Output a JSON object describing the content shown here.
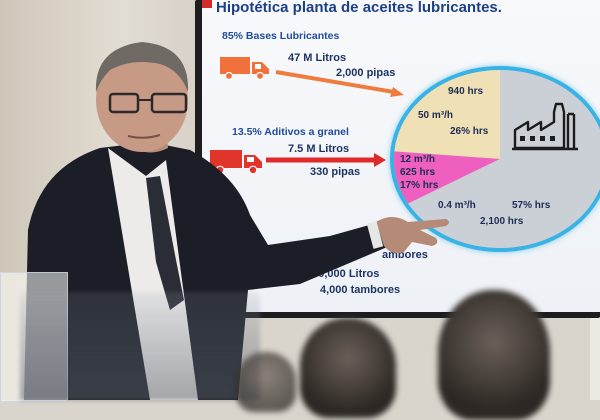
{
  "slide": {
    "title": "Hipotética planta de aceites lubricantes.",
    "bases": {
      "label": "85% Bases Lubricantes",
      "volume": "47 M Litros",
      "pipas": "2,000 pipas"
    },
    "aditivos": {
      "label": "13.5% Aditivos a granel",
      "volume": "7.5 M Litros",
      "pipas": "330 pipas"
    },
    "tambores": {
      "label_partial": "ambores",
      "litros": "840,000 Litros",
      "count": "4,000 tambores"
    },
    "pie": {
      "slices": [
        {
          "name": "bases",
          "hrs": "940 hrs",
          "rate": "50 m³/h",
          "share": "26% hrs",
          "color": "#efe0b5"
        },
        {
          "name": "aditivos",
          "rate": "12 m³/h",
          "hrs": "625 hrs",
          "share": "17% hrs",
          "color": "#ee5fbf"
        },
        {
          "name": "tambores",
          "rate": "0.4 m³/h",
          "share": "57% hrs",
          "hrs": "2,100 hrs",
          "color": "#cbd0d6"
        }
      ],
      "icon": "factory-icon",
      "ring_color": "#39b3e6"
    },
    "colors": {
      "title": "#1d3f86",
      "truck_orange": "#f2703a",
      "truck_red": "#e1342b",
      "arrow_orange": "#f07b3f",
      "arrow_red": "#e02a2a"
    }
  }
}
